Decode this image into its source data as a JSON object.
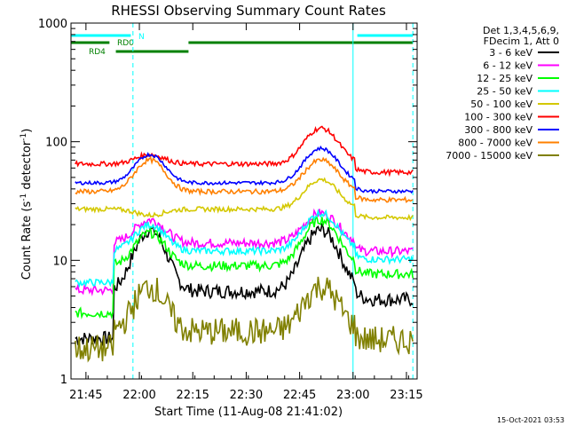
{
  "chart_data": {
    "type": "line",
    "title": "RHESSI Observing Summary Count Rates",
    "xlabel": "Start Time (11-Aug-08 21:41:02)",
    "ylabel_main": "Count Rate (s",
    "ylabel_sup1": "-1",
    "ylabel_mid": " detector",
    "ylabel_sup2": "-1",
    "ylabel_end": ")",
    "y_scale": "log",
    "ylim": [
      1,
      1000
    ],
    "xlim_minutes": [
      21.68,
      23.3
    ],
    "x_ticks": [
      {
        "label": "21:45",
        "t": 21.75
      },
      {
        "label": "22:00",
        "t": 22.0
      },
      {
        "label": "22:15",
        "t": 22.25
      },
      {
        "label": "22:30",
        "t": 22.5
      },
      {
        "label": "22:45",
        "t": 22.75
      },
      {
        "label": "23:00",
        "t": 23.0
      },
      {
        "label": "23:15",
        "t": 23.25
      }
    ],
    "y_ticks": [
      {
        "label": "1",
        "v": 1
      },
      {
        "label": "10",
        "v": 10
      },
      {
        "label": "100",
        "v": 100
      },
      {
        "label": "1000",
        "v": 1000
      }
    ],
    "legend_header": [
      "Det 1,3,4,5,6,9,",
      "FDecim 1, Att 0"
    ],
    "series": [
      {
        "name": "3 - 6 keV",
        "color": "#000000"
      },
      {
        "name": "6 - 12 keV",
        "color": "#ff00ff"
      },
      {
        "name": "12 - 25 keV",
        "color": "#00ff00"
      },
      {
        "name": "25 - 50 keV",
        "color": "#00ffff"
      },
      {
        "name": "50 - 100 keV",
        "color": "#d4c800"
      },
      {
        "name": "100 - 300 keV",
        "color": "#ff0000"
      },
      {
        "name": "300 - 800 keV",
        "color": "#0000ff"
      },
      {
        "name": "800 - 7000 keV",
        "color": "#ff8000"
      },
      {
        "name": "7000 - 15000 keV",
        "color": "#808000"
      }
    ],
    "flags": [
      {
        "label": "N",
        "color": "#00ffff",
        "segments": [
          [
            21.68,
            21.96
          ],
          [
            23.02,
            23.28
          ]
        ]
      },
      {
        "label": "RD0",
        "color": "#008000",
        "segments": [
          [
            21.68,
            21.86
          ],
          [
            22.23,
            23.28
          ]
        ]
      },
      {
        "label": "RD4",
        "color": "#008000",
        "segments": [
          [
            21.89,
            22.23
          ]
        ]
      }
    ],
    "events": [
      {
        "t": 21.68,
        "style": "solid",
        "color": "#00ffff"
      },
      {
        "t": 21.97,
        "style": "dashed",
        "color": "#00ffff"
      },
      {
        "t": 23.0,
        "style": "solid",
        "color": "#00ffff"
      },
      {
        "t": 23.28,
        "style": "dashed",
        "color": "#00ffff"
      }
    ],
    "grid": false,
    "legend_position": "right"
  },
  "timestamp": "15-Oct-2021 03:53"
}
